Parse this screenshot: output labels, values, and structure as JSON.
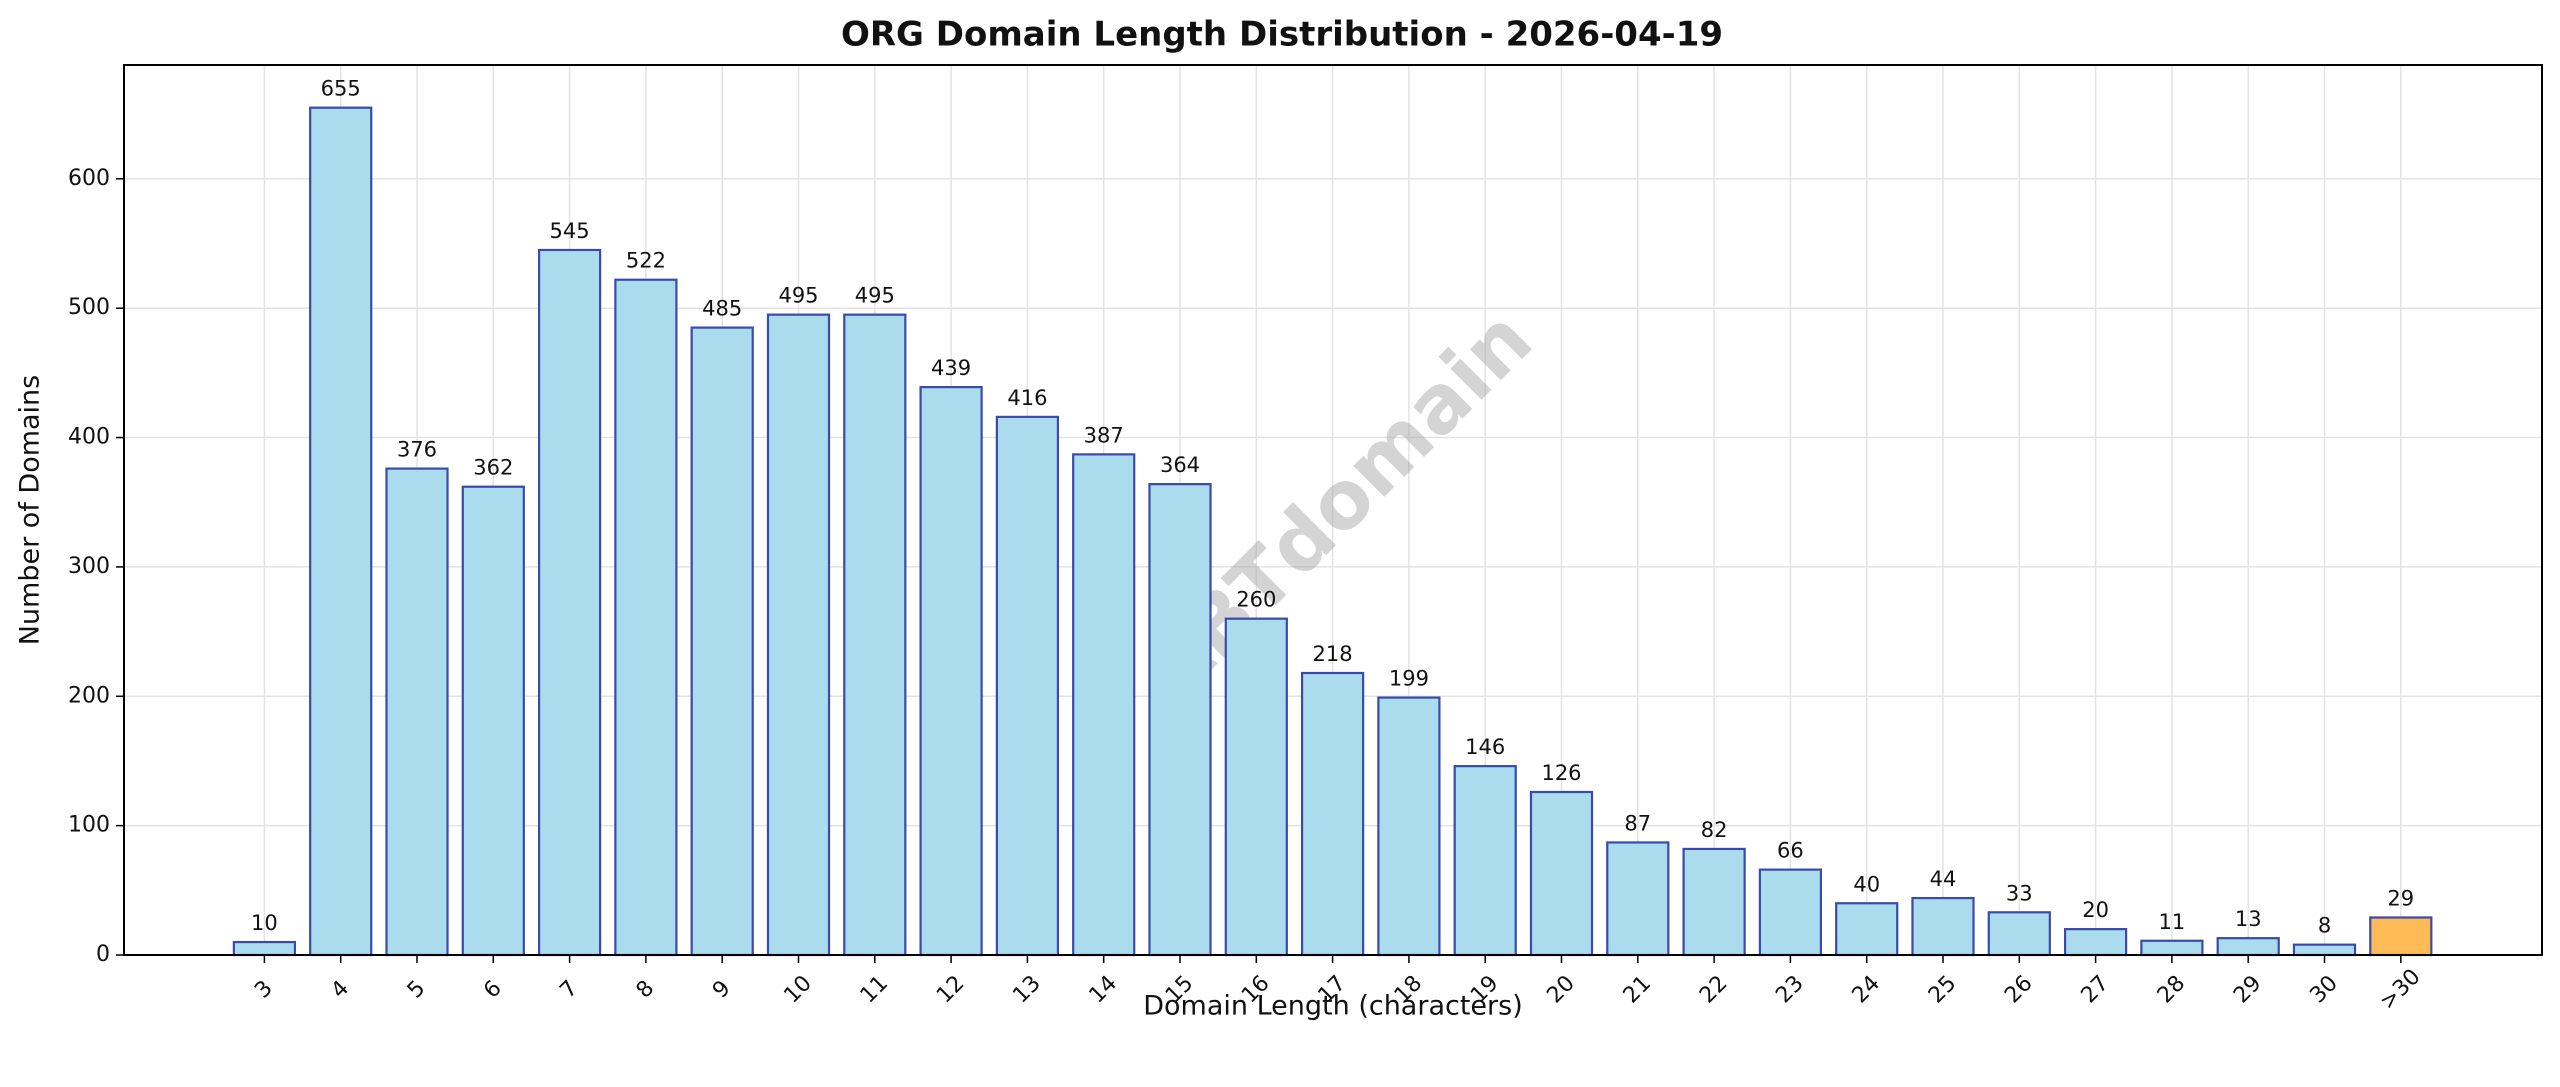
{
  "chart_data": {
    "type": "bar",
    "title": "ORG Domain Length Distribution - 2026-04-19",
    "x_label": "Domain Length (characters)",
    "y_label": "Number of Domains",
    "watermark": "ABTdomain",
    "categories": [
      "3",
      "4",
      "5",
      "6",
      "7",
      "8",
      "9",
      "10",
      "11",
      "12",
      "13",
      "14",
      "15",
      "16",
      "17",
      "18",
      "19",
      "20",
      "21",
      "22",
      "23",
      "24",
      "25",
      "26",
      "27",
      "28",
      "29",
      "30",
      ">30"
    ],
    "values": [
      10,
      655,
      376,
      362,
      545,
      522,
      485,
      495,
      495,
      439,
      416,
      387,
      364,
      260,
      218,
      199,
      146,
      126,
      87,
      82,
      66,
      40,
      44,
      33,
      20,
      11,
      13,
      8,
      29
    ],
    "colors": [
      "#abdcee",
      "#abdcee",
      "#abdcee",
      "#abdcee",
      "#abdcee",
      "#abdcee",
      "#abdcee",
      "#abdcee",
      "#abdcee",
      "#abdcee",
      "#abdcee",
      "#abdcee",
      "#abdcee",
      "#abdcee",
      "#abdcee",
      "#abdcee",
      "#abdcee",
      "#abdcee",
      "#abdcee",
      "#abdcee",
      "#abdcee",
      "#abdcee",
      "#abdcee",
      "#abdcee",
      "#abdcee",
      "#abdcee",
      "#abdcee",
      "#abdcee",
      "#ffbb55"
    ],
    "edgecolor": "#3a4aaa",
    "ylim": [
      0,
      688
    ],
    "yticks": [
      0,
      100,
      200,
      300,
      400,
      500,
      600
    ],
    "grid": true
  }
}
